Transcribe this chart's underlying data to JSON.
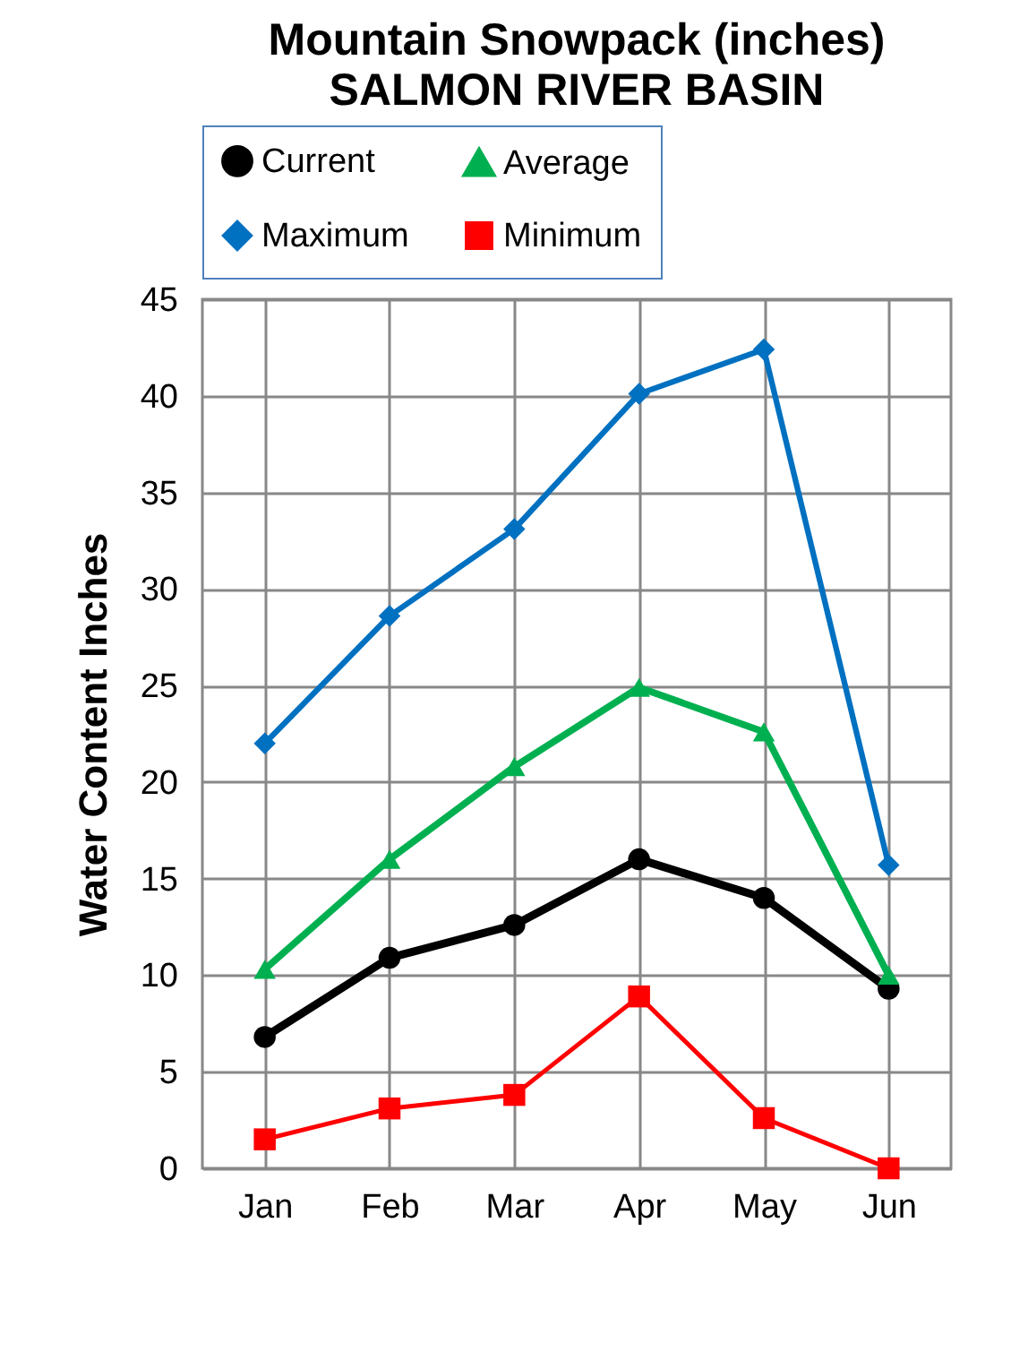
{
  "chart_data": {
    "type": "line",
    "title": "Mountain Snowpack (inches)",
    "subtitle": "SALMON RIVER BASIN",
    "ylabel": "Water Content Inches",
    "categories": [
      "Jan",
      "Feb",
      "Mar",
      "Apr",
      "May",
      "Jun"
    ],
    "series": [
      {
        "name": "Current",
        "color": "#000000",
        "marker": "circle",
        "values": [
          6.8,
          10.9,
          12.6,
          16.0,
          14.0,
          9.3
        ]
      },
      {
        "name": "Average",
        "color": "#00b050",
        "marker": "triangle",
        "values": [
          10.3,
          16.0,
          20.8,
          24.9,
          22.6,
          10.0
        ]
      },
      {
        "name": "Maximum",
        "color": "#0070c0",
        "marker": "diamond",
        "values": [
          22.0,
          28.6,
          33.1,
          40.1,
          42.4,
          15.7
        ]
      },
      {
        "name": "Minimum",
        "color": "#ff0000",
        "marker": "square",
        "values": [
          1.5,
          3.1,
          3.8,
          8.9,
          2.6,
          0.0
        ]
      }
    ],
    "ylim": [
      0,
      45
    ],
    "yticks": [
      0,
      5,
      10,
      15,
      20,
      25,
      30,
      35,
      40,
      45
    ],
    "grid": true,
    "legend": "top"
  }
}
